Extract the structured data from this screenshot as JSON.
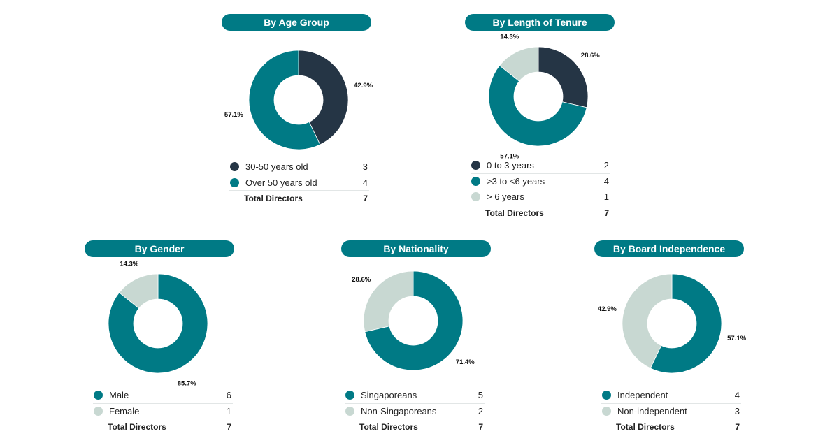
{
  "colors": {
    "dark": "#253545",
    "teal": "#007a85",
    "light": "#c8d8d2"
  },
  "chart_data": [
    {
      "type": "pie",
      "title": "By Age Group",
      "categories": [
        "30-50 years old",
        "Over 50 years old"
      ],
      "values": [
        3,
        4
      ],
      "percent_labels": [
        "42.9%",
        "57.1%"
      ],
      "colors": [
        "#253545",
        "#007a85"
      ],
      "total_label": "Total Directors",
      "total": "7"
    },
    {
      "type": "pie",
      "title": "By Length of Tenure",
      "categories": [
        "0 to 3 years",
        ">3 to <6 years",
        "> 6 years"
      ],
      "values": [
        2,
        4,
        1
      ],
      "percent_labels": [
        "28.6%",
        "57.1%",
        "14.3%"
      ],
      "colors": [
        "#253545",
        "#007a85",
        "#c8d8d2"
      ],
      "total_label": "Total Directors",
      "total": "7"
    },
    {
      "type": "pie",
      "title": "By Gender",
      "categories": [
        "Male",
        "Female"
      ],
      "values": [
        6,
        1
      ],
      "percent_labels": [
        "85.7%",
        "14.3%"
      ],
      "colors": [
        "#007a85",
        "#c8d8d2"
      ],
      "total_label": "Total Directors",
      "total": "7"
    },
    {
      "type": "pie",
      "title": "By Nationality",
      "categories": [
        "Singaporeans",
        "Non-Singaporeans"
      ],
      "values": [
        5,
        2
      ],
      "percent_labels": [
        "71.4%",
        "28.6%"
      ],
      "colors": [
        "#007a85",
        "#c8d8d2"
      ],
      "total_label": "Total Directors",
      "total": "7"
    },
    {
      "type": "pie",
      "title": "By Board Independence",
      "categories": [
        "Independent",
        "Non-independent"
      ],
      "values": [
        4,
        3
      ],
      "percent_labels": [
        "57.1%",
        "42.9%"
      ],
      "colors": [
        "#007a85",
        "#c8d8d2"
      ],
      "total_label": "Total Directors",
      "total": "7"
    }
  ]
}
